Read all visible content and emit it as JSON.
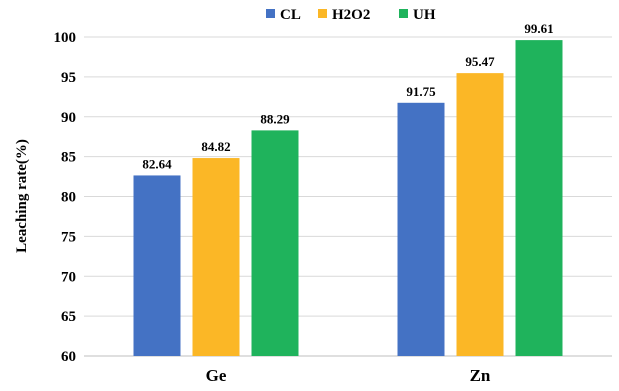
{
  "chart_data": {
    "type": "bar",
    "title": "",
    "xlabel": "",
    "ylabel": "Leaching rate(%)",
    "ylim": [
      60,
      100
    ],
    "yticks": [
      60,
      65,
      70,
      75,
      80,
      85,
      90,
      95,
      100
    ],
    "grid": true,
    "legend": "top-center",
    "categories": [
      "Ge",
      "Zn"
    ],
    "series": [
      {
        "name": "CL",
        "color": "#4472c4",
        "values": [
          82.64,
          91.75
        ],
        "labels": [
          "82.64",
          "91.75"
        ]
      },
      {
        "name": "H2O2",
        "color": "#fbb726",
        "values": [
          84.82,
          95.47
        ],
        "labels": [
          "84.82",
          "95.47"
        ]
      },
      {
        "name": "UH",
        "color": "#1fb35c",
        "values": [
          88.29,
          99.61
        ],
        "labels": [
          "88.29",
          "99.61"
        ]
      }
    ]
  }
}
